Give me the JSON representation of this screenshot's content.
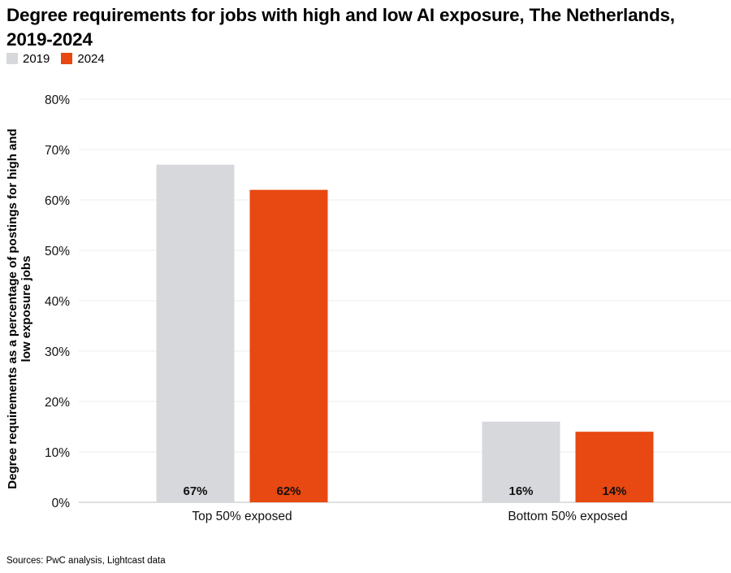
{
  "chart_data": {
    "type": "bar",
    "title": "Degree requirements for jobs with high and low AI exposure, The Netherlands, 2019-2024",
    "xlabel": "",
    "ylabel": "Degree requirements as a percentage of postings for high and low exposure jobs",
    "ylim": [
      0,
      80
    ],
    "yticks": [
      "0%",
      "10%",
      "20%",
      "30%",
      "40%",
      "50%",
      "60%",
      "70%",
      "80%"
    ],
    "categories": [
      "Top 50% exposed",
      "Bottom 50% exposed"
    ],
    "series": [
      {
        "name": "2019",
        "color": "#d7d8dc",
        "values": [
          67,
          16
        ],
        "labels": [
          "67%",
          "16%"
        ]
      },
      {
        "name": "2024",
        "color": "#e84811",
        "values": [
          62,
          14
        ],
        "labels": [
          "62%",
          "14%"
        ]
      }
    ],
    "grid": true,
    "legend_position": "top-left"
  },
  "source": "Sources: PwC analysis, Lightcast data"
}
